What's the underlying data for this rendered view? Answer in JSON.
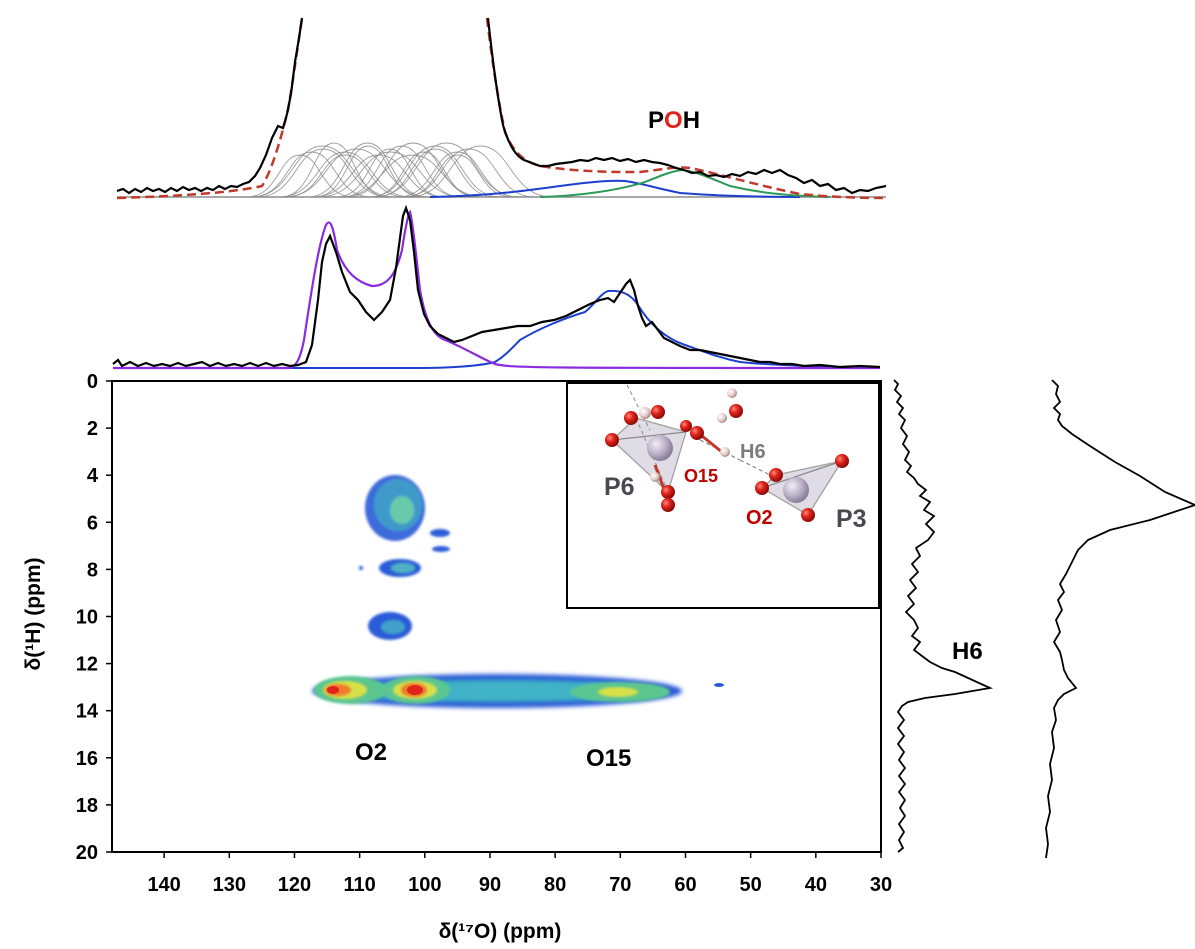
{
  "chart_data": {
    "type": "heatmap",
    "title": "",
    "xlabel": "δ(¹⁷O) (ppm)",
    "ylabel": "δ(¹H) (ppm)",
    "xlim": [
      148,
      30
    ],
    "ylim": [
      20,
      0
    ],
    "x_ticks": [
      "140",
      "130",
      "120",
      "110",
      "100",
      "90",
      "80",
      "70",
      "60",
      "50",
      "40",
      "30"
    ],
    "y_ticks": [
      "0",
      "2",
      "4",
      "6",
      "8",
      "10",
      "12",
      "14",
      "16",
      "18",
      "20"
    ],
    "annotations": {
      "poh_prefix": "P",
      "poh_mid": "O",
      "poh_suffix": "H",
      "o2": "O2",
      "o15": "O15",
      "h6": "H6"
    },
    "inset_labels": {
      "p6": "P6",
      "o15": "O15",
      "h6": "H6",
      "o2": "O2",
      "p3": "P3"
    },
    "contour_peaks": [
      {
        "label": "O2",
        "x": 116,
        "y": 13.1,
        "intensity": "high"
      },
      {
        "label": "O2",
        "x": 103.5,
        "y": 13.1,
        "intensity": "high"
      },
      {
        "label": "O15",
        "x": 69,
        "y": 13.1,
        "intensity": "medium"
      },
      {
        "label": "",
        "x": 108,
        "y": 5.5,
        "intensity": "low"
      },
      {
        "label": "",
        "x": 108,
        "y": 7.9,
        "intensity": "low"
      },
      {
        "label": "",
        "x": 109,
        "y": 10.4,
        "intensity": "low"
      }
    ],
    "top_panel_series": [
      {
        "name": "",
        "color": "#000000",
        "style": "solid"
      },
      {
        "name": "",
        "color": "#c0392b",
        "style": "dashed"
      },
      {
        "name": "",
        "color": "#1c3fcf",
        "style": "solid"
      },
      {
        "name": "",
        "color": "#2e9a5a",
        "style": "solid"
      },
      {
        "name": "",
        "color": "#8c8c8c",
        "style": "solid"
      }
    ],
    "middle_panel_series": [
      {
        "name": "",
        "color": "#000000",
        "style": "solid"
      },
      {
        "name": "",
        "color": "#8a2be2",
        "style": "solid"
      },
      {
        "name": "",
        "color": "#1c3fcf",
        "style": "solid"
      }
    ],
    "side_projection_peaks": [
      {
        "label": "H6",
        "y": 13.1
      },
      {
        "label": "",
        "y": 5.4
      }
    ],
    "grid": false,
    "legend": "none"
  }
}
